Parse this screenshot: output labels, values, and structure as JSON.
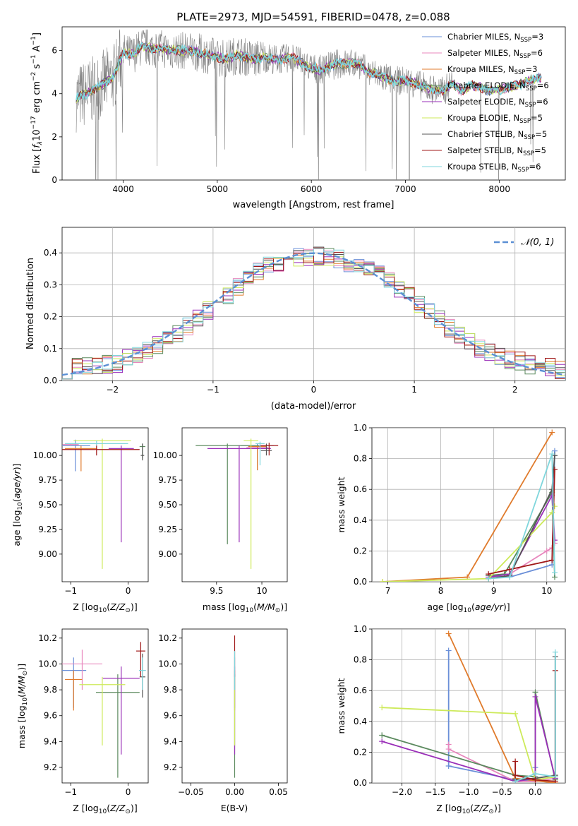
{
  "figure": {
    "title": "PLATE=2973, MJD=54591, FIBERID=0478, z=0.088"
  },
  "colors": {
    "Chabrier MILES": "#6a8fd8",
    "Salpeter MILES": "#e887bd",
    "Kroupa MILES": "#e07b2c",
    "Chabrier ELODIE": "#5b8a5e",
    "Salpeter ELODIE": "#9a2fb8",
    "Kroupa ELODIE": "#cdea5a",
    "Chabrier STELIB": "#555555",
    "Salpeter STELIB": "#a01818",
    "Kroupa STELIB": "#7fd6dc",
    "normal_curve": "#5b8fd4",
    "observed": "#808080"
  },
  "chart_data": [
    {
      "id": "spectrum",
      "type": "line",
      "xlabel": "wavelength [Angstrom, rest frame]",
      "ylabel": "Flux [f_λ 10^-17 erg cm^-2 s^-1 A^-1]",
      "xlim": [
        3350,
        8700
      ],
      "ylim": [
        0,
        7.1
      ],
      "xticks": [
        4000,
        5000,
        6000,
        7000,
        8000
      ],
      "yticks": [
        0,
        2,
        4,
        6
      ],
      "legend_placement": "upper-right",
      "legend": [
        {
          "name": "Chabrier MILES",
          "nssp": "3"
        },
        {
          "name": "Salpeter MILES",
          "nssp": "6"
        },
        {
          "name": "Kroupa MILES",
          "nssp": "3"
        },
        {
          "name": "Chabrier ELODIE",
          "nssp": "6"
        },
        {
          "name": "Salpeter ELODIE",
          "nssp": "6"
        },
        {
          "name": "Kroupa ELODIE",
          "nssp": "5"
        },
        {
          "name": "Chabrier STELIB",
          "nssp": "5"
        },
        {
          "name": "Salpeter STELIB",
          "nssp": "5"
        },
        {
          "name": "Kroupa STELIB",
          "nssp": "6"
        }
      ],
      "continuum": {
        "x": [
          3500,
          3600,
          3700,
          3800,
          3900,
          4000,
          4100,
          4200,
          4300,
          4400,
          4500,
          4600,
          4700,
          4800,
          4900,
          5000,
          5100,
          5200,
          5300,
          5400,
          5500,
          5600,
          5700,
          5800,
          5900,
          6000,
          6100,
          6200,
          6300,
          6400,
          6500,
          6600,
          6700,
          6800,
          6900,
          7000,
          7100,
          7200,
          7300,
          7400,
          7500,
          7600,
          7700,
          7800,
          7900,
          8000,
          8100,
          8200,
          8300,
          8400
        ],
        "y": [
          3.8,
          4.0,
          4.2,
          4.5,
          4.8,
          5.9,
          5.8,
          6.2,
          6.1,
          6.1,
          6.0,
          6.0,
          6.0,
          5.9,
          5.8,
          5.7,
          5.6,
          5.8,
          5.7,
          5.6,
          5.7,
          5.6,
          5.6,
          5.7,
          5.4,
          5.2,
          5.1,
          5.3,
          5.4,
          5.4,
          5.4,
          5.0,
          4.9,
          4.7,
          4.6,
          4.6,
          4.5,
          4.3,
          4.2,
          4.1,
          4.5,
          4.1,
          4.4,
          4.3,
          4.1,
          4.2,
          4.3,
          4.4,
          4.6,
          4.7
        ]
      }
    },
    {
      "id": "residuals",
      "type": "histogram",
      "xlabel": "(data-model)/error",
      "ylabel": "Normed distribution",
      "xlim": [
        -2.5,
        2.5
      ],
      "ylim": [
        0,
        0.48
      ],
      "xticks": [
        -2,
        -1,
        0,
        1,
        2
      ],
      "yticks": [
        0.0,
        0.1,
        0.2,
        0.3,
        0.4
      ],
      "grid": true,
      "legend_placement": "upper-right",
      "legend": "𝒩(0, 1)",
      "bin_edges": [
        -2.5,
        -2.4,
        -2.3,
        -2.2,
        -2.1,
        -2.0,
        -1.9,
        -1.8,
        -1.7,
        -1.6,
        -1.5,
        -1.4,
        -1.3,
        -1.2,
        -1.1,
        -1.0,
        -0.9,
        -0.8,
        -0.7,
        -0.6,
        -0.5,
        -0.4,
        -0.3,
        -0.2,
        -0.1,
        0.0,
        0.1,
        0.2,
        0.3,
        0.4,
        0.5,
        0.6,
        0.7,
        0.8,
        0.9,
        1.0,
        1.1,
        1.2,
        1.3,
        1.4,
        1.5,
        1.6,
        1.7,
        1.8,
        1.9,
        2.0,
        2.1,
        2.2,
        2.3,
        2.4,
        2.5
      ],
      "base_density": [
        0.035,
        0.04,
        0.05,
        0.045,
        0.05,
        0.055,
        0.07,
        0.08,
        0.09,
        0.11,
        0.13,
        0.145,
        0.17,
        0.2,
        0.22,
        0.245,
        0.27,
        0.295,
        0.32,
        0.345,
        0.36,
        0.37,
        0.38,
        0.385,
        0.39,
        0.39,
        0.385,
        0.38,
        0.37,
        0.36,
        0.345,
        0.33,
        0.31,
        0.29,
        0.265,
        0.24,
        0.215,
        0.19,
        0.165,
        0.14,
        0.12,
        0.1,
        0.085,
        0.075,
        0.065,
        0.06,
        0.05,
        0.045,
        0.04,
        0.035
      ]
    },
    {
      "id": "age_vs_Z",
      "type": "errorbar",
      "xlabel": "Z [log10(Z/Z⊙)]",
      "ylabel": "age [log10(age/yr)]",
      "xlim": [
        -1.15,
        0.35
      ],
      "ylim": [
        8.72,
        10.28
      ],
      "xticks": [
        -1,
        0
      ],
      "yticks": [
        9.0,
        9.25,
        9.5,
        9.75,
        10.0
      ],
      "points": [
        {
          "series": "Chabrier MILES",
          "x": -0.92,
          "y": 10.1,
          "xerr": 0.26,
          "ylo": 9.84,
          "yhi": 10.16
        },
        {
          "series": "Salpeter MILES",
          "x": -1.0,
          "y": 10.11,
          "xerr": 0.14,
          "ylo": 10.1,
          "yhi": 10.12
        },
        {
          "series": "Kroupa MILES",
          "x": -0.82,
          "y": 10.07,
          "xerr": 0.28,
          "ylo": 9.84,
          "yhi": 10.1
        },
        {
          "series": "Chabrier ELODIE",
          "x": 0.25,
          "y": 10.09,
          "xerr": 0.05,
          "ylo": 9.97,
          "yhi": 10.12
        },
        {
          "series": "Salpeter ELODIE",
          "x": -0.12,
          "y": 10.07,
          "xerr": 0.22,
          "ylo": 9.12,
          "yhi": 10.1
        },
        {
          "series": "Kroupa ELODIE",
          "x": -0.45,
          "y": 10.15,
          "xerr": 0.5,
          "ylo": 8.85,
          "yhi": 10.17
        },
        {
          "series": "Chabrier STELIB",
          "x": 0.25,
          "y": 10.0,
          "xerr": 0.03,
          "ylo": 9.95,
          "yhi": 10.12
        },
        {
          "series": "Salpeter STELIB",
          "x": -0.55,
          "y": 10.06,
          "xerr": 0.75,
          "ylo": 10.0,
          "yhi": 10.1
        },
        {
          "series": "Kroupa STELIB",
          "x": -0.55,
          "y": 10.12,
          "xerr": 0.55,
          "ylo": 10.1,
          "yhi": 10.15
        }
      ]
    },
    {
      "id": "age_vs_mass",
      "type": "errorbar",
      "xlabel": "mass [log10(M/M⊙)]",
      "ylabel": "",
      "xlim": [
        9.12,
        10.28
      ],
      "ylim": [
        8.72,
        10.28
      ],
      "xticks": [
        9.5,
        10.0
      ],
      "yticks": [
        9.0,
        9.25,
        9.5,
        9.75,
        10.0
      ],
      "points": [
        {
          "series": "Chabrier MILES",
          "x": 9.95,
          "y": 10.1,
          "xerr": 0.18,
          "ylo": 9.85,
          "yhi": 10.12
        },
        {
          "series": "Salpeter MILES",
          "x": 9.95,
          "y": 10.08,
          "xerr": 0.12,
          "ylo": 10.05,
          "yhi": 10.1
        },
        {
          "series": "Kroupa MILES",
          "x": 9.95,
          "y": 10.09,
          "xerr": 0.1,
          "ylo": 9.85,
          "yhi": 10.1
        },
        {
          "series": "Chabrier ELODIE",
          "x": 9.62,
          "y": 10.1,
          "xerr": 0.35,
          "ylo": 9.1,
          "yhi": 10.12
        },
        {
          "series": "Salpeter ELODIE",
          "x": 9.75,
          "y": 10.07,
          "xerr": 0.35,
          "ylo": 9.12,
          "yhi": 10.1
        },
        {
          "series": "Kroupa ELODIE",
          "x": 9.88,
          "y": 10.15,
          "xerr": 0.08,
          "ylo": 8.85,
          "yhi": 10.17
        },
        {
          "series": "Chabrier STELIB",
          "x": 10.05,
          "y": 10.05,
          "xerr": 0.06,
          "ylo": 10.0,
          "yhi": 10.12
        },
        {
          "series": "Salpeter STELIB",
          "x": 10.08,
          "y": 10.1,
          "xerr": 0.1,
          "ylo": 10.0,
          "yhi": 10.13
        },
        {
          "series": "Kroupa STELIB",
          "x": 9.98,
          "y": 10.12,
          "xerr": 0.05,
          "ylo": 9.9,
          "yhi": 10.14
        }
      ]
    },
    {
      "id": "weight_vs_age",
      "type": "line",
      "xlabel": "age [log10(age/yr)]",
      "ylabel": "mass weight",
      "xlim": [
        6.7,
        10.35
      ],
      "ylim": [
        0,
        1.0
      ],
      "xticks": [
        7,
        8,
        9,
        10
      ],
      "yticks": [
        0.0,
        0.2,
        0.4,
        0.6,
        0.8,
        1.0
      ],
      "grid": true,
      "series": [
        {
          "name": "Chabrier MILES",
          "x": [
            8.9,
            9.3,
            10.1,
            10.15
          ],
          "y": [
            0.04,
            0.03,
            0.11,
            0.85
          ]
        },
        {
          "name": "Salpeter MILES",
          "x": [
            8.9,
            9.3,
            10.0,
            10.1,
            10.15
          ],
          "y": [
            0.03,
            0.05,
            0.2,
            0.22,
            0.25
          ]
        },
        {
          "name": "Kroupa MILES",
          "x": [
            6.9,
            8.5,
            10.1
          ],
          "y": [
            0.0,
            0.03,
            0.97
          ]
        },
        {
          "name": "Chabrier ELODIE",
          "x": [
            8.9,
            9.2,
            10.1,
            10.15
          ],
          "y": [
            0.04,
            0.05,
            0.58,
            0.03
          ]
        },
        {
          "name": "Salpeter ELODIE",
          "x": [
            8.9,
            9.3,
            10.1,
            10.15
          ],
          "y": [
            0.03,
            0.05,
            0.56,
            0.27
          ]
        },
        {
          "name": "Kroupa ELODIE",
          "x": [
            6.9,
            8.9,
            10.1,
            10.15
          ],
          "y": [
            0.0,
            0.02,
            0.45,
            0.49
          ]
        },
        {
          "name": "Chabrier STELIB",
          "x": [
            8.9,
            9.3,
            10.1,
            10.15
          ],
          "y": [
            0.02,
            0.04,
            0.6,
            0.82
          ]
        },
        {
          "name": "Salpeter STELIB",
          "x": [
            8.9,
            9.3,
            10.1,
            10.15
          ],
          "y": [
            0.05,
            0.08,
            0.14,
            0.73
          ]
        },
        {
          "name": "Kroupa STELIB",
          "x": [
            8.9,
            9.3,
            10.1,
            10.15
          ],
          "y": [
            0.02,
            0.03,
            0.83,
            0.06
          ]
        }
      ]
    },
    {
      "id": "mass_vs_Z",
      "type": "errorbar",
      "xlabel": "Z [log10(Z/Z⊙)]",
      "ylabel": "mass [log10(M/M⊙)]",
      "xlim": [
        -1.15,
        0.35
      ],
      "ylim": [
        9.08,
        10.27
      ],
      "xticks": [
        -1,
        0
      ],
      "yticks": [
        9.2,
        9.4,
        9.6,
        9.8,
        10.0,
        10.2
      ],
      "points": [
        {
          "series": "Chabrier MILES",
          "x": -0.95,
          "y": 9.95,
          "xerr": 0.22,
          "ylo": 9.66,
          "yhi": 10.05
        },
        {
          "series": "Salpeter MILES",
          "x": -0.8,
          "y": 10.0,
          "xerr": 0.35,
          "ylo": 9.8,
          "yhi": 10.11
        },
        {
          "series": "Kroupa MILES",
          "x": -0.95,
          "y": 9.88,
          "xerr": 0.15,
          "ylo": 9.64,
          "yhi": 9.95
        },
        {
          "series": "Chabrier ELODIE",
          "x": -0.18,
          "y": 9.78,
          "xerr": 0.38,
          "ylo": 9.12,
          "yhi": 9.92
        },
        {
          "series": "Salpeter ELODIE",
          "x": -0.12,
          "y": 9.89,
          "xerr": 0.32,
          "ylo": 9.3,
          "yhi": 9.98
        },
        {
          "series": "Kroupa ELODIE",
          "x": -0.45,
          "y": 9.84,
          "xerr": 0.4,
          "ylo": 9.37,
          "yhi": 9.9
        },
        {
          "series": "Chabrier STELIB",
          "x": 0.25,
          "y": 9.9,
          "xerr": 0.05,
          "ylo": 9.74,
          "yhi": 10.08
        },
        {
          "series": "Salpeter STELIB",
          "x": 0.22,
          "y": 10.1,
          "xerr": 0.08,
          "ylo": 9.9,
          "yhi": 10.17
        },
        {
          "series": "Kroupa STELIB",
          "x": 0.25,
          "y": 9.95,
          "xerr": 0.06,
          "ylo": 9.8,
          "yhi": 10.05
        }
      ]
    },
    {
      "id": "mass_vs_ebv",
      "type": "errorbar",
      "xlabel": "E(B-V)",
      "ylabel": "",
      "xlim": [
        -0.06,
        0.06
      ],
      "ylim": [
        9.08,
        10.27
      ],
      "xticks": [
        -0.05,
        0.0,
        0.05
      ],
      "xticklabels": [
        "−0.05",
        "0.00",
        "0.05"
      ],
      "yticks": [
        9.2,
        9.4,
        9.6,
        9.8,
        10.0,
        10.2
      ],
      "points": [
        {
          "series": "Chabrier MILES",
          "x": 0.0,
          "y": 9.95,
          "ylo": 9.66,
          "yhi": 10.05
        },
        {
          "series": "Kroupa MILES",
          "x": 0.0,
          "y": 9.88,
          "ylo": 9.64,
          "yhi": 9.95
        },
        {
          "series": "Chabrier ELODIE",
          "x": 0.0,
          "y": 9.78,
          "ylo": 9.12,
          "yhi": 9.92
        },
        {
          "series": "Salpeter ELODIE",
          "x": 0.0,
          "y": 9.89,
          "ylo": 9.3,
          "yhi": 9.98
        },
        {
          "series": "Kroupa ELODIE",
          "x": 0.0,
          "y": 9.84,
          "ylo": 9.37,
          "yhi": 9.9
        },
        {
          "series": "Salpeter STELIB",
          "x": 0.0,
          "y": 10.1,
          "ylo": 9.9,
          "yhi": 10.22
        },
        {
          "series": "Kroupa STELIB",
          "x": 0.0,
          "y": 9.95,
          "ylo": 9.8,
          "yhi": 10.1
        }
      ]
    },
    {
      "id": "weight_vs_Z",
      "type": "line",
      "xlabel": "Z [log10(Z/Z⊙)]",
      "ylabel": "mass weight",
      "xlim": [
        -2.45,
        0.45
      ],
      "ylim": [
        0,
        1.0
      ],
      "xticks": [
        -2.0,
        -1.5,
        -1.0,
        -0.5,
        0.0
      ],
      "xticklabels": [
        "−2.0",
        "−1.5",
        "−1.0",
        "−0.5",
        "0.0"
      ],
      "yticks": [
        0.0,
        0.2,
        0.4,
        0.6,
        0.8,
        1.0
      ],
      "grid": true,
      "series": [
        {
          "name": "Chabrier MILES",
          "x": [
            -1.3,
            -1.3,
            -0.3,
            0.0,
            0.0
          ],
          "y": [
            0.86,
            0.11,
            0.02,
            0.01,
            0.1
          ]
        },
        {
          "name": "Salpeter MILES",
          "x": [
            -1.3,
            -1.3,
            -0.3,
            0.0,
            0.3
          ],
          "y": [
            0.25,
            0.22,
            0.01,
            0.01,
            0.03
          ]
        },
        {
          "name": "Kroupa MILES",
          "x": [
            -1.3,
            -0.3,
            0.3
          ],
          "y": [
            0.97,
            0.03,
            0.0
          ]
        },
        {
          "name": "Chabrier ELODIE",
          "x": [
            -2.3,
            -0.3,
            0.0,
            0.0,
            0.3
          ],
          "y": [
            0.31,
            0.05,
            0.04,
            0.59,
            0.02
          ]
        },
        {
          "name": "Salpeter ELODIE",
          "x": [
            -2.3,
            -0.3,
            0.0,
            0.0,
            0.3
          ],
          "y": [
            0.27,
            0.01,
            0.03,
            0.56,
            0.03
          ]
        },
        {
          "name": "Kroupa ELODIE",
          "x": [
            -2.3,
            -0.3,
            0.0,
            0.3
          ],
          "y": [
            0.49,
            0.45,
            0.02,
            0.04
          ]
        },
        {
          "name": "Chabrier STELIB",
          "x": [
            -0.3,
            0.0,
            0.3,
            0.3
          ],
          "y": [
            0.02,
            0.03,
            0.05,
            0.82
          ]
        },
        {
          "name": "Salpeter STELIB",
          "x": [
            -0.3,
            -0.3,
            0.0,
            0.3,
            0.3
          ],
          "y": [
            0.14,
            0.05,
            0.02,
            0.01,
            0.73
          ]
        },
        {
          "name": "Kroupa STELIB",
          "x": [
            -0.3,
            0.0,
            0.3,
            0.3
          ],
          "y": [
            0.01,
            0.06,
            0.04,
            0.85
          ]
        }
      ]
    }
  ]
}
